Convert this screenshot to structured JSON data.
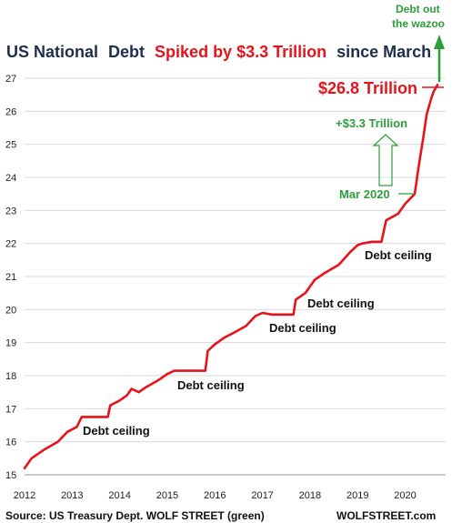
{
  "title_parts": {
    "a": "US National",
    "b": "Debt",
    "c": "Spiked by $3.3 Trillion",
    "d": "since March"
  },
  "colors": {
    "navy": "#1f2d4e",
    "red": "#e8131a",
    "green": "#2e9e3a",
    "grid": "#d9d9d9"
  },
  "annotations": {
    "last_value": "$26.8 Trillion",
    "spike": "+$3.3 Trillion",
    "mar": "Mar 2020",
    "wazoo_1": "Debt out",
    "wazoo_2": "the wazoo",
    "ceiling": "Debt ceiling"
  },
  "footer": {
    "source": "Source: US Treasury Dept. WOLF STREET (green)",
    "brand": "WOLFSTREET.com"
  },
  "chart_data": {
    "type": "line",
    "title": "US National Debt Spiked by $3.3 Trillion since March",
    "xlabel": "",
    "ylabel": "",
    "x_ticks": [
      2012,
      2013,
      2014,
      2015,
      2016,
      2017,
      2018,
      2019,
      2020
    ],
    "y_ticks": [
      15,
      16,
      17,
      18,
      19,
      20,
      21,
      22,
      23,
      24,
      25,
      26,
      27
    ],
    "xlim": [
      2012,
      2020.85
    ],
    "ylim": [
      15,
      27
    ],
    "grid": "horizontal",
    "series": [
      {
        "color": "#e8131a",
        "points": [
          [
            2012.0,
            15.2
          ],
          [
            2012.15,
            15.5
          ],
          [
            2012.4,
            15.75
          ],
          [
            2012.7,
            16.0
          ],
          [
            2012.9,
            16.3
          ],
          [
            2013.1,
            16.45
          ],
          [
            2013.2,
            16.75
          ],
          [
            2013.4,
            16.75
          ],
          [
            2013.75,
            16.75
          ],
          [
            2013.8,
            17.1
          ],
          [
            2014.0,
            17.25
          ],
          [
            2014.15,
            17.4
          ],
          [
            2014.25,
            17.6
          ],
          [
            2014.4,
            17.5
          ],
          [
            2014.55,
            17.65
          ],
          [
            2014.8,
            17.85
          ],
          [
            2015.0,
            18.05
          ],
          [
            2015.15,
            18.15
          ],
          [
            2015.5,
            18.15
          ],
          [
            2015.8,
            18.15
          ],
          [
            2015.85,
            18.75
          ],
          [
            2016.0,
            18.95
          ],
          [
            2016.2,
            19.15
          ],
          [
            2016.4,
            19.3
          ],
          [
            2016.65,
            19.5
          ],
          [
            2016.85,
            19.8
          ],
          [
            2017.0,
            19.9
          ],
          [
            2017.2,
            19.85
          ],
          [
            2017.4,
            19.85
          ],
          [
            2017.65,
            19.85
          ],
          [
            2017.7,
            20.3
          ],
          [
            2017.9,
            20.5
          ],
          [
            2018.1,
            20.9
          ],
          [
            2018.3,
            21.1
          ],
          [
            2018.6,
            21.35
          ],
          [
            2018.85,
            21.75
          ],
          [
            2019.0,
            21.95
          ],
          [
            2019.1,
            22.0
          ],
          [
            2019.3,
            22.05
          ],
          [
            2019.5,
            22.05
          ],
          [
            2019.6,
            22.7
          ],
          [
            2019.85,
            22.9
          ],
          [
            2020.0,
            23.2
          ],
          [
            2020.2,
            23.5
          ],
          [
            2020.28,
            24.3
          ],
          [
            2020.38,
            25.2
          ],
          [
            2020.45,
            25.9
          ],
          [
            2020.55,
            26.4
          ],
          [
            2020.6,
            26.6
          ],
          [
            2020.68,
            26.8
          ]
        ]
      }
    ]
  }
}
